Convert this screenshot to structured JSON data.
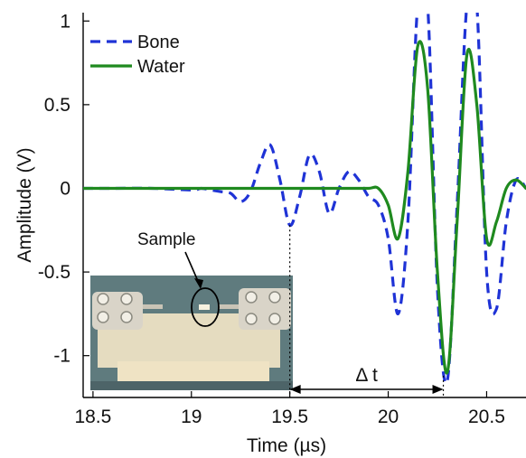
{
  "chart_data": {
    "type": "line",
    "title": "",
    "xlabel": "Time (µs)",
    "ylabel": "Amplitude (V)",
    "xlim": [
      18.45,
      20.7
    ],
    "ylim": [
      -1.25,
      1.05
    ],
    "xticks": [
      18.5,
      19,
      19.5,
      20,
      20.5
    ],
    "xtick_labels": [
      "18.5",
      "19",
      "19.5",
      "20",
      "20.5"
    ],
    "yticks": [
      1,
      0.5,
      0,
      -0.5,
      -1
    ],
    "ytick_labels": [
      "1",
      "0.5",
      "0",
      "-0.5",
      "-1"
    ],
    "grid": false,
    "legend_position": "top-left",
    "series": [
      {
        "name": "Bone",
        "style": "dashed",
        "color": "#1f33d6",
        "x": [
          18.45,
          18.6,
          18.8,
          19.0,
          19.05,
          19.1,
          19.15,
          19.2,
          19.25,
          19.3,
          19.35,
          19.4,
          19.45,
          19.5,
          19.55,
          19.6,
          19.65,
          19.7,
          19.75,
          19.8,
          19.85,
          19.9,
          19.95,
          20.0,
          20.05,
          20.1,
          20.15,
          20.2,
          20.25,
          20.3,
          20.35,
          20.4,
          20.45,
          20.5,
          20.55,
          20.6,
          20.65,
          20.7
        ],
        "y": [
          0.0,
          0.0,
          0.0,
          -0.01,
          0.0,
          -0.01,
          -0.02,
          -0.03,
          -0.08,
          -0.02,
          0.15,
          0.26,
          0.05,
          -0.22,
          -0.05,
          0.2,
          0.1,
          -0.15,
          0.0,
          0.1,
          0.05,
          -0.05,
          -0.1,
          -0.3,
          -0.75,
          -0.2,
          1.1,
          1.1,
          -0.6,
          -1.15,
          -0.1,
          1.1,
          1.1,
          -0.5,
          -0.72,
          -0.2,
          0.05,
          0.0
        ]
      },
      {
        "name": "Water",
        "style": "solid",
        "color": "#1f8a1f",
        "x": [
          18.45,
          18.6,
          18.8,
          19.0,
          19.2,
          19.4,
          19.6,
          19.8,
          19.9,
          19.95,
          20.0,
          20.05,
          20.1,
          20.15,
          20.2,
          20.25,
          20.3,
          20.35,
          20.4,
          20.45,
          20.5,
          20.55,
          20.6,
          20.65,
          20.7
        ],
        "y": [
          0.0,
          0.0,
          0.0,
          0.0,
          0.0,
          0.0,
          0.0,
          0.0,
          0.0,
          0.0,
          -0.1,
          -0.3,
          0.1,
          0.85,
          0.6,
          -0.5,
          -1.1,
          -0.2,
          0.8,
          0.5,
          -0.3,
          -0.2,
          0.0,
          0.05,
          0.0
        ]
      }
    ],
    "annotations": {
      "sample_label": "Sample",
      "delta_label": "Δ t",
      "delta_start_x": 19.5,
      "delta_end_x": 20.28
    }
  }
}
